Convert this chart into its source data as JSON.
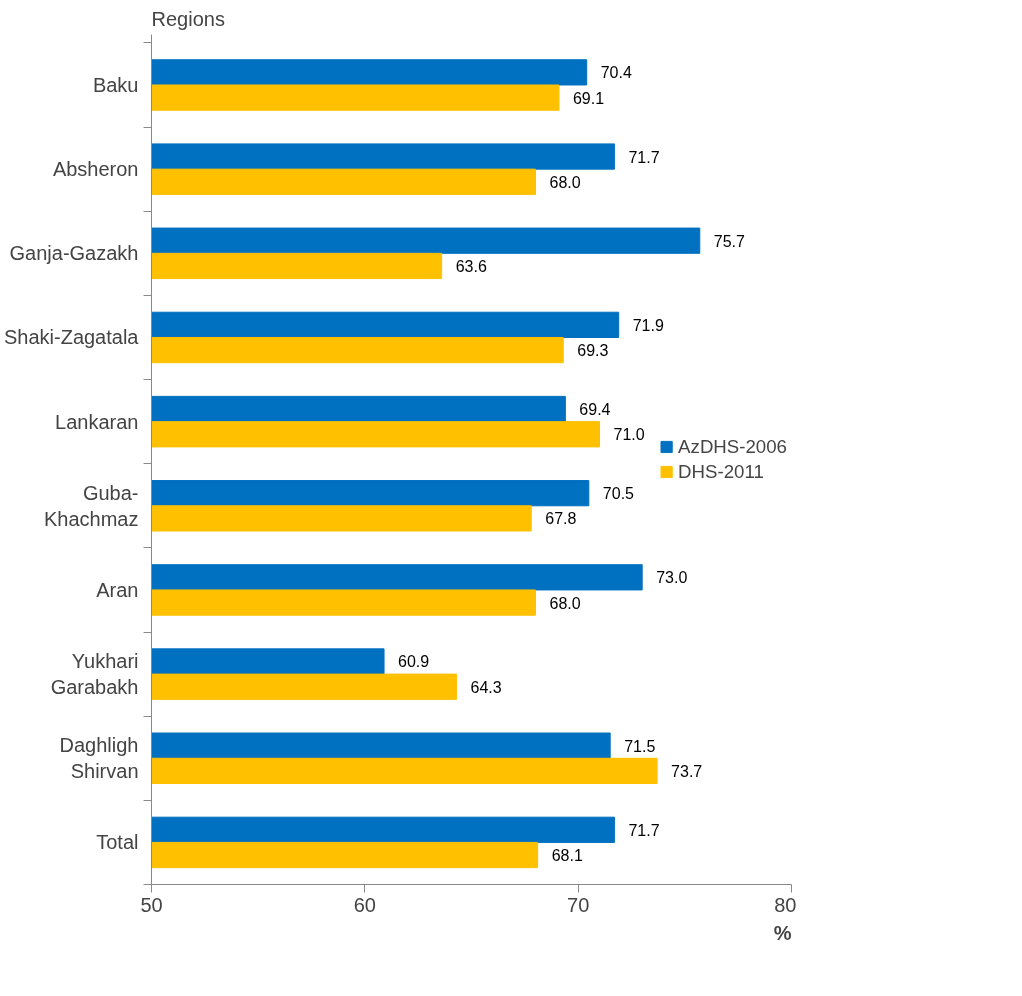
{
  "chart_data": {
    "type": "bar",
    "orientation": "horizontal",
    "ylabel": "Regions",
    "xlabel": "%",
    "categories": [
      "Baku",
      "Absheron",
      "Ganja-Gazakh",
      "Shaki-Zagatala",
      "Lankaran",
      "Guba-\nKhachmaz",
      "Aran",
      "Yukhari\nGarabakh",
      "Daghligh\nShirvan",
      "Total"
    ],
    "series": [
      {
        "name": "AzDHS-2006",
        "color": "#0070c0",
        "values": [
          70.4,
          71.7,
          75.7,
          71.9,
          69.4,
          70.5,
          73.0,
          60.9,
          71.5,
          71.7
        ],
        "value_labels": [
          "70.4",
          "71.7",
          "75.7",
          "71.9",
          "69.4",
          "70.5",
          "73.0",
          "60.9",
          "71.5",
          "71.7"
        ]
      },
      {
        "name": "DHS-2011",
        "color": "#ffc000",
        "values": [
          69.1,
          68.0,
          63.6,
          69.3,
          71.0,
          67.8,
          68.0,
          64.3,
          73.7,
          68.1
        ],
        "value_labels": [
          "69.1",
          "68.0",
          "63.6",
          "69.3",
          "71.0",
          "67.8",
          "68.0",
          "64.3",
          "73.7",
          "68.1"
        ]
      }
    ],
    "xlim": [
      50,
      80
    ],
    "xticks": [
      50,
      60,
      70,
      80
    ],
    "grid": false,
    "legend": "right"
  }
}
